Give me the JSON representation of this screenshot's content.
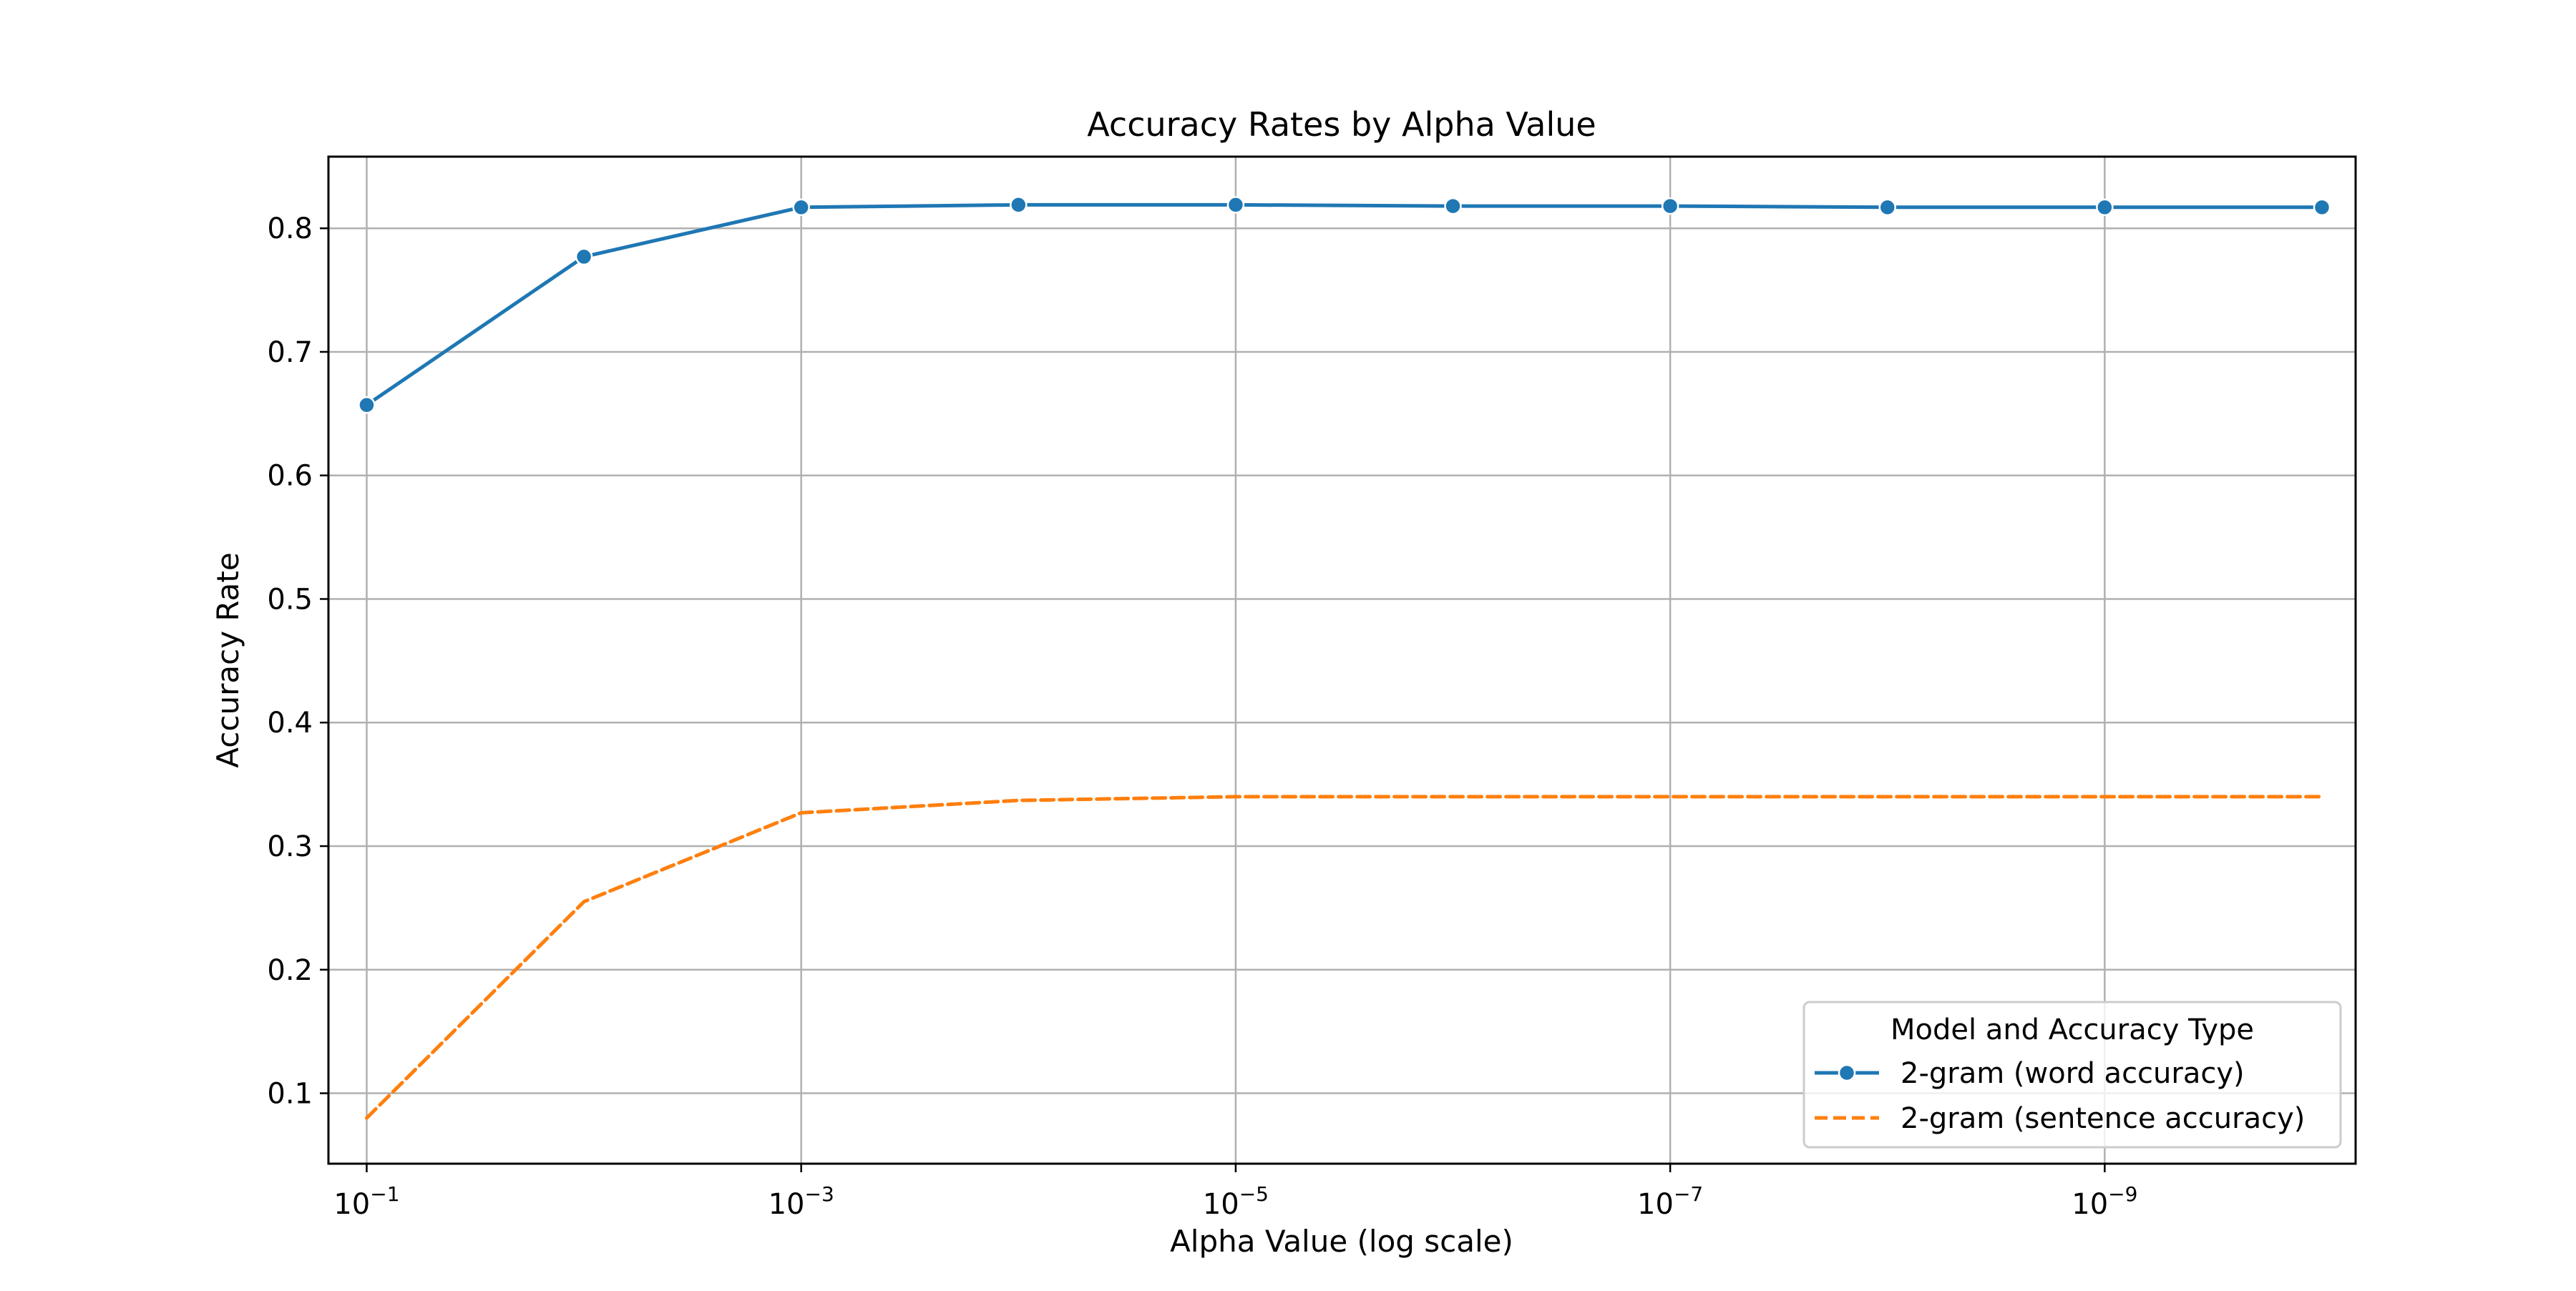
{
  "chart_data": {
    "type": "line",
    "title": "Accuracy Rates by Alpha Value",
    "xlabel": "Alpha Value (log scale)",
    "ylabel": "Accuracy Rate",
    "xscale": "log",
    "x_direction": "decreasing",
    "x": [
      0.1,
      0.01,
      0.001,
      0.0001,
      1e-05,
      1e-06,
      1e-07,
      1e-08,
      1e-09,
      1e-10
    ],
    "xlim": [
      0.15,
      7e-11
    ],
    "ylim": [
      0.043,
      0.858
    ],
    "x_ticks": [
      {
        "value": 0.1,
        "base": "10",
        "exp": "−1"
      },
      {
        "value": 0.001,
        "base": "10",
        "exp": "−3"
      },
      {
        "value": 1e-05,
        "base": "10",
        "exp": "−5"
      },
      {
        "value": 1e-07,
        "base": "10",
        "exp": "−7"
      },
      {
        "value": 1e-09,
        "base": "10",
        "exp": "−9"
      }
    ],
    "y_ticks": [
      "0.1",
      "0.2",
      "0.3",
      "0.4",
      "0.5",
      "0.6",
      "0.7",
      "0.8"
    ],
    "grid": true,
    "series": [
      {
        "name": "2-gram (word accuracy)",
        "color": "#1f77b4",
        "line_style": "solid",
        "marker": "circle",
        "values": [
          0.657,
          0.777,
          0.817,
          0.819,
          0.819,
          0.818,
          0.818,
          0.817,
          0.817,
          0.817
        ]
      },
      {
        "name": "2-gram (sentence accuracy)",
        "color": "#ff7f0e",
        "line_style": "dashed",
        "marker": "none",
        "values": [
          0.08,
          0.255,
          0.327,
          0.337,
          0.34,
          0.34,
          0.34,
          0.34,
          0.34,
          0.34
        ]
      }
    ],
    "legend": {
      "title": "Model and Accuracy Type",
      "placement": "lower-right"
    }
  }
}
